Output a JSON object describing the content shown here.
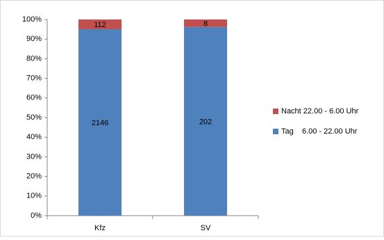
{
  "chart_data": {
    "type": "bar",
    "stacking": "percent",
    "categories": [
      "Kfz",
      "SV"
    ],
    "series": [
      {
        "name": "Tag    6.00 - 22.00 Uhr",
        "color": "#4f81bd",
        "values": [
          2146,
          202
        ]
      },
      {
        "name": "Nacht 22.00 - 6.00 Uhr",
        "color": "#c0504d",
        "values": [
          112,
          8
        ]
      }
    ],
    "ylim": [
      0,
      100
    ],
    "yticks": [
      {
        "value": 0,
        "label": "0%"
      },
      {
        "value": 10,
        "label": "10%"
      },
      {
        "value": 20,
        "label": "20%"
      },
      {
        "value": 30,
        "label": "30%"
      },
      {
        "value": 40,
        "label": "40%"
      },
      {
        "value": 50,
        "label": "50%"
      },
      {
        "value": 60,
        "label": "60%"
      },
      {
        "value": 70,
        "label": "70%"
      },
      {
        "value": 80,
        "label": "80%"
      },
      {
        "value": 90,
        "label": "90%"
      },
      {
        "value": 100,
        "label": "100%"
      }
    ],
    "grid": false,
    "legend": "right"
  }
}
